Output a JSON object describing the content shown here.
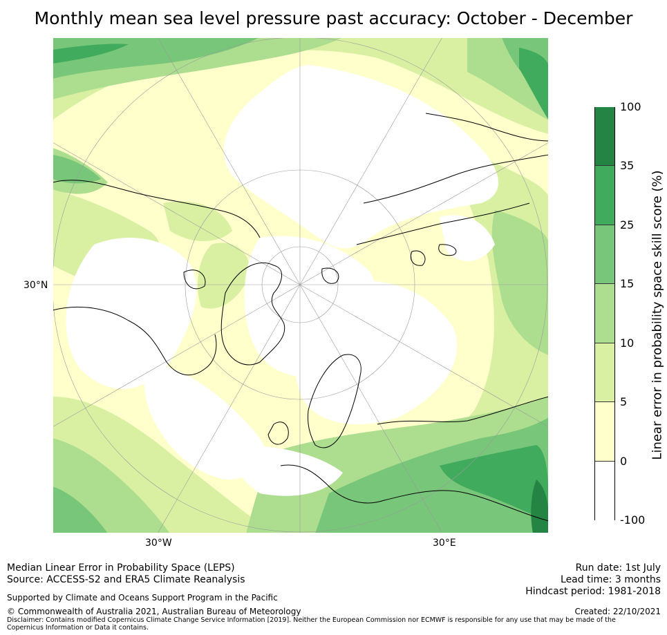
{
  "title": "Monthly mean sea level pressure past accuracy: October - December",
  "map": {
    "type": "polar-stereographic-filled-contour",
    "projection": "North polar stereographic",
    "lat_labels": [
      "30°N"
    ],
    "lon_labels": [
      "30°W",
      "30°E"
    ],
    "features": [
      "coastlines",
      "graticule"
    ],
    "palette": {
      "-100-0": "#ffffff",
      "0-5": "#ffffcc",
      "5-10": "#d9f0a3",
      "10-15": "#addd8e",
      "15-25": "#78c679",
      "25-35": "#41ab5d",
      "35-100": "#238443"
    }
  },
  "colorbar": {
    "label": "Linear error in probability space skill score (%)",
    "ticks": [
      "100",
      "35",
      "25",
      "15",
      "10",
      "5",
      "0",
      "-100"
    ],
    "bins": [
      {
        "range": "35 to 100",
        "color": "#238443"
      },
      {
        "range": "25 to 35",
        "color": "#41ab5d"
      },
      {
        "range": "15 to 25",
        "color": "#78c679"
      },
      {
        "range": "10 to 15",
        "color": "#addd8e"
      },
      {
        "range": "5 to 10",
        "color": "#d9f0a3"
      },
      {
        "range": "0 to 5",
        "color": "#ffffcc"
      },
      {
        "range": "-100 to 0",
        "color": "#ffffff"
      }
    ]
  },
  "footer": {
    "line1": "Median Linear Error in Probability Space (LEPS)",
    "line2": "Source: ACCESS-S2 and ERA5 Climate Reanalysis",
    "support": "Supported by Climate and Oceans Support Program in the Pacific",
    "copyright": "© Commonwealth of Australia 2021, Australian Bureau of Meteorology",
    "disclaimer": "Disclaimer: Contains modified Copernicus Climate Change Service Information [2019]. Neither the European Commission nor ECMWF is responsible for any use that may be made of the Copernicus Information or Data it contains.",
    "run_date": "Run date: 1st July",
    "lead_time": "Lead time: 3 months",
    "hindcast": "Hindcast period: 1981-2018",
    "created": "Created: 22/10/2021"
  }
}
